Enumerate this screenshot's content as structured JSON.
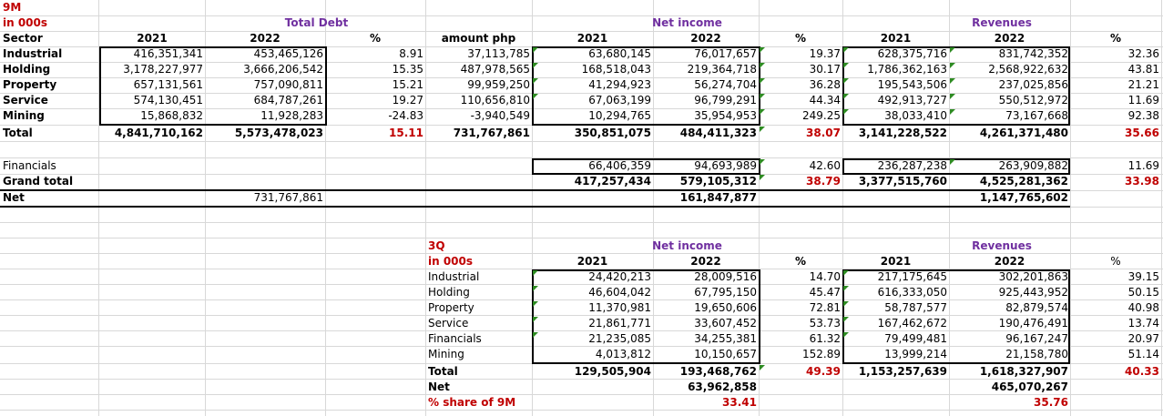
{
  "nine_month": {
    "title": "9M",
    "unit": "in 000s",
    "sector_header": "Sector",
    "total_debt": {
      "title": "Total Debt",
      "col_2021": "2021",
      "col_2022": "2022",
      "col_pct": "%",
      "rows": [
        {
          "v2021": "416,351,341",
          "v2022": "453,465,126",
          "pct": "8.91"
        },
        {
          "v2021": "3,178,227,977",
          "v2022": "3,666,206,542",
          "pct": "15.35"
        },
        {
          "v2021": "657,131,561",
          "v2022": "757,090,811",
          "pct": "15.21"
        },
        {
          "v2021": "574,130,451",
          "v2022": "684,787,261",
          "pct": "19.27"
        },
        {
          "v2021": "15,868,832",
          "v2022": "11,928,283",
          "pct": "-24.83"
        }
      ],
      "total": {
        "v2021": "4,841,710,162",
        "v2022": "5,573,478,023",
        "pct": "15.11"
      }
    },
    "amount_php": {
      "header": "amount php",
      "rows": [
        "37,113,785",
        "487,978,565",
        "99,959,250",
        "110,656,810",
        "-3,940,549"
      ],
      "total": "731,767,861"
    },
    "net_income": {
      "title": "Net income",
      "col_2021": "2021",
      "col_2022": "2022",
      "col_pct": "%",
      "rows": [
        {
          "v2021": "63,680,145",
          "v2022": "76,017,657",
          "pct": "19.37"
        },
        {
          "v2021": "168,518,043",
          "v2022": "219,364,718",
          "pct": "30.17"
        },
        {
          "v2021": "41,294,923",
          "v2022": "56,274,704",
          "pct": "36.28"
        },
        {
          "v2021": "67,063,199",
          "v2022": "96,799,291",
          "pct": "44.34"
        },
        {
          "v2021": "10,294,765",
          "v2022": "35,954,953",
          "pct": "249.25"
        }
      ],
      "total": {
        "v2021": "350,851,075",
        "v2022": "484,411,323",
        "pct": "38.07"
      },
      "financials": {
        "v2021": "66,406,359",
        "v2022": "94,693,989",
        "pct": "42.60"
      },
      "grand_total": {
        "v2021": "417,257,434",
        "v2022": "579,105,312",
        "pct": "38.79"
      },
      "net": "161,847,877"
    },
    "revenues": {
      "title": "Revenues",
      "col_2021": "2021",
      "col_2022": "2022",
      "col_pct": "%",
      "rows": [
        {
          "v2021": "628,375,716",
          "v2022": "831,742,352",
          "pct": "32.36"
        },
        {
          "v2021": "1,786,362,163",
          "v2022": "2,568,922,632",
          "pct": "43.81"
        },
        {
          "v2021": "195,543,506",
          "v2022": "237,025,856",
          "pct": "21.21"
        },
        {
          "v2021": "492,913,727",
          "v2022": "550,512,972",
          "pct": "11.69"
        },
        {
          "v2021": "38,033,410",
          "v2022": "73,167,668",
          "pct": "92.38"
        }
      ],
      "total": {
        "v2021": "3,141,228,522",
        "v2022": "4,261,371,480",
        "pct": "35.66"
      },
      "financials": {
        "v2021": "236,287,238",
        "v2022": "263,909,882",
        "pct": "11.69"
      },
      "grand_total": {
        "v2021": "3,377,515,760",
        "v2022": "4,525,281,362",
        "pct": "33.98"
      },
      "net": "1,147,765,602"
    },
    "sectors": [
      "Industrial",
      "Holding",
      "Property",
      "Service",
      "Mining"
    ],
    "total_label": "Total",
    "financials_label": "Financials",
    "grand_total_label": "Grand total",
    "net_label": "Net",
    "net_debt": "731,767,861"
  },
  "third_quarter": {
    "title": "3Q",
    "unit": "in 000s",
    "net_income": {
      "title": "Net income",
      "col_2021": "2021",
      "col_2022": "2022",
      "col_pct": "%",
      "rows": [
        {
          "v2021": "24,420,213",
          "v2022": "28,009,516",
          "pct": "14.70"
        },
        {
          "v2021": "46,604,042",
          "v2022": "67,795,150",
          "pct": "45.47"
        },
        {
          "v2021": "11,370,981",
          "v2022": "19,650,606",
          "pct": "72.81"
        },
        {
          "v2021": "21,861,771",
          "v2022": "33,607,452",
          "pct": "53.73"
        },
        {
          "v2021": "21,235,085",
          "v2022": "34,255,381",
          "pct": "61.32"
        },
        {
          "v2021": "4,013,812",
          "v2022": "10,150,657",
          "pct": "152.89"
        }
      ],
      "total": {
        "v2021": "129,505,904",
        "v2022": "193,468,762",
        "pct": "49.39"
      },
      "net": "63,962,858",
      "share": "33.41"
    },
    "revenues": {
      "title": "Revenues",
      "col_2021": "2021",
      "col_2022": "2022",
      "col_pct": "%",
      "rows": [
        {
          "v2021": "217,175,645",
          "v2022": "302,201,863",
          "pct": "39.15"
        },
        {
          "v2021": "616,333,050",
          "v2022": "925,443,952",
          "pct": "50.15"
        },
        {
          "v2021": "58,787,577",
          "v2022": "82,879,574",
          "pct": "40.98"
        },
        {
          "v2021": "167,462,672",
          "v2022": "190,476,491",
          "pct": "13.74"
        },
        {
          "v2021": "79,499,481",
          "v2022": "96,167,247",
          "pct": "20.97"
        },
        {
          "v2021": "13,999,214",
          "v2022": "21,158,780",
          "pct": "51.14"
        }
      ],
      "total": {
        "v2021": "1,153,257,639",
        "v2022": "1,618,327,907",
        "pct": "40.33"
      },
      "net": "465,070,267",
      "share": "35.76"
    },
    "sectors": [
      "Industrial",
      "Holding",
      "Property",
      "Service",
      "Financials",
      "Mining"
    ],
    "total_label": "Total",
    "net_label": "Net",
    "share_label": "% share of 9M"
  },
  "colors": {
    "title_red": "#c00000",
    "header_purple": "#7030a0",
    "flag_green": "#2e8b22",
    "gridline": "#d8d8d8"
  }
}
